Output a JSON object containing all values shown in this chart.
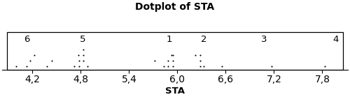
{
  "title": "Dotplot of STA",
  "xlabel": "STA",
  "xlim": [
    3.82,
    8.12
  ],
  "xticks": [
    4.2,
    4.8,
    5.4,
    6.0,
    6.6,
    7.2,
    7.8
  ],
  "xtick_labels": [
    "4,2",
    "4,8",
    "5,4",
    "6,0",
    "6,6",
    "7,2",
    "7,8"
  ],
  "dot_size": 3.0,
  "dot_color": "#000000",
  "cluster_labels": [
    {
      "text": "6",
      "x": 4.13
    },
    {
      "text": "5",
      "x": 4.82
    },
    {
      "text": "1",
      "x": 5.9
    },
    {
      "text": "2",
      "x": 6.33
    },
    {
      "text": "3",
      "x": 7.08
    },
    {
      "text": "4",
      "x": 7.97
    }
  ],
  "dots_x": [
    4.0,
    4.13,
    4.17,
    4.22,
    4.38,
    4.44,
    4.72,
    4.77,
    4.78,
    4.83,
    4.83,
    4.83,
    4.88,
    4.78,
    5.72,
    5.83,
    5.88,
    5.93,
    5.88,
    5.94,
    5.94,
    5.94,
    6.22,
    6.28,
    6.28,
    6.28,
    6.33,
    6.55,
    7.17,
    7.83
  ],
  "dots_y": [
    1,
    1,
    2,
    3,
    1,
    2,
    1,
    3,
    2,
    4,
    3,
    2,
    1,
    1,
    2,
    1,
    2,
    3,
    1,
    3,
    2,
    1,
    3,
    3,
    2,
    1,
    1,
    1,
    1,
    1
  ],
  "title_fontsize": 10,
  "label_fontsize": 9.5,
  "tick_fontsize": 9,
  "cluster_fontsize": 9.5,
  "background_color": "#ffffff"
}
